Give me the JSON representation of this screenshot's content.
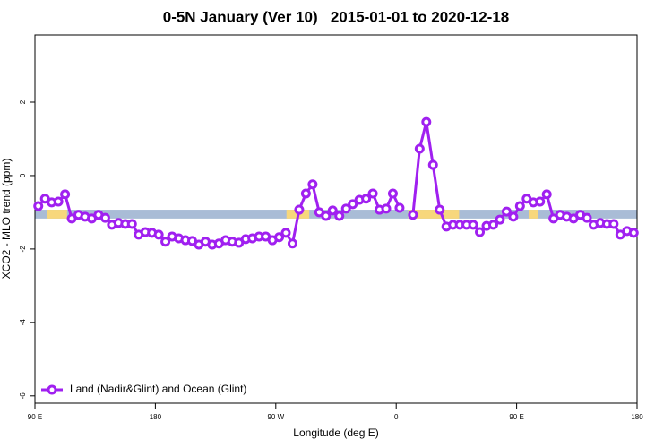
{
  "chart_data": {
    "type": "line",
    "title": "0-5N January (Ver 10)   2015-01-01 to 2020-12-18",
    "x_label": "Longitude (deg E)",
    "y_label": "XCO2 - MLO trend (ppm)",
    "xlim": [
      90,
      540
    ],
    "ylim": [
      -6.2,
      3.83
    ],
    "xticks": [
      {
        "value": 90,
        "label": "90 E"
      },
      {
        "value": 180,
        "label": "180"
      },
      {
        "value": 270,
        "label": "90 W"
      },
      {
        "value": 360,
        "label": "0"
      },
      {
        "value": 450,
        "label": "90 E"
      },
      {
        "value": 540,
        "label": "180"
      }
    ],
    "yticks": [
      -6,
      -4,
      -2,
      0,
      2
    ],
    "legend": "bottom-left",
    "band": {
      "ylim": [
        -1.17,
        -0.93
      ],
      "color": "#a9bcd6",
      "highlights": [
        {
          "xlim": [
            99,
            114
          ],
          "color": "#f7d77c"
        },
        {
          "xlim": [
            278,
            295
          ],
          "color": "#f7d77c"
        },
        {
          "xlim": [
            369,
            407
          ],
          "color": "#f7d77c"
        },
        {
          "xlim": [
            459,
            466
          ],
          "color": "#f7d77c"
        }
      ]
    },
    "x": [
      92.5,
      97.5,
      102.5,
      107.5,
      112.5,
      117.5,
      122.5,
      127.5,
      132.5,
      137.5,
      142.5,
      147.5,
      152.5,
      157.5,
      162.5,
      167.5,
      172.5,
      177.5,
      182.5,
      187.5,
      192.5,
      197.5,
      202.5,
      207.5,
      212.5,
      217.5,
      222.5,
      227.5,
      232.5,
      237.5,
      242.5,
      247.5,
      252.5,
      257.5,
      262.5,
      267.5,
      272.5,
      277.5,
      282.5,
      287.5,
      292.5,
      297.5,
      302.5,
      307.5,
      312.5,
      317.5,
      322.5,
      327.5,
      332.5,
      337.5,
      342.5,
      347.5,
      352.5,
      357.5,
      362.5,
      367.5,
      372.5,
      377.5,
      382.5,
      387.5,
      392.5,
      397.5,
      402.5,
      407.5,
      412.5,
      417.5,
      422.5,
      427.5,
      432.5,
      437.5,
      442.5,
      447.5,
      452.5,
      457.5,
      462.5,
      467.5,
      472.5,
      477.5,
      482.5,
      487.5,
      492.5,
      497.5,
      502.5,
      507.5,
      512.5,
      517.5,
      522.5,
      527.5,
      532.5,
      537.5
    ],
    "series": [
      {
        "name": "Land (Nadir&Glint) and Ocean (Glint)",
        "color": "#a020f0",
        "values": [
          -0.83,
          -0.63,
          -0.73,
          -0.71,
          -0.51,
          -1.17,
          -1.07,
          -1.12,
          -1.17,
          -1.07,
          -1.15,
          -1.34,
          -1.29,
          -1.32,
          -1.32,
          -1.61,
          -1.54,
          -1.56,
          -1.61,
          -1.8,
          -1.66,
          -1.71,
          -1.76,
          -1.78,
          -1.88,
          -1.8,
          -1.88,
          -1.85,
          -1.76,
          -1.8,
          -1.83,
          -1.73,
          -1.71,
          -1.66,
          -1.66,
          -1.76,
          -1.68,
          -1.56,
          -1.85,
          -0.93,
          -0.49,
          -0.24,
          -1.0,
          -1.1,
          -0.95,
          -1.1,
          -0.9,
          -0.78,
          -0.66,
          -0.63,
          -0.49,
          -0.93,
          -0.9,
          -0.49,
          -0.88,
          null,
          -1.07,
          0.73,
          1.46,
          0.29,
          -0.93,
          -1.39,
          -1.34,
          -1.34,
          -1.34,
          -1.34,
          -1.54,
          -1.37,
          -1.34,
          -1.2,
          -0.98,
          -1.12,
          -0.83,
          -0.63,
          -0.73,
          -0.71,
          -0.51,
          -1.17,
          -1.07,
          -1.12,
          -1.17,
          -1.07,
          -1.15,
          -1.34,
          -1.29,
          -1.32,
          -1.32,
          -1.61,
          -1.51,
          -1.56
        ]
      }
    ]
  }
}
